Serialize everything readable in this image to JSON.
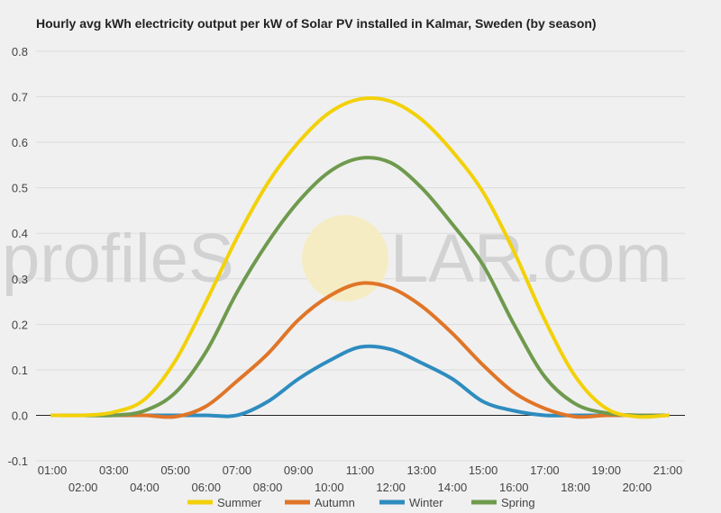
{
  "chart_data": {
    "type": "line",
    "title": "Hourly avg kWh electricity output per kW of Solar PV installed in Kalmar, Sweden (by season)",
    "xlabel": "",
    "ylabel": "",
    "ylim": [
      -0.1,
      0.8
    ],
    "yticks": [
      -0.1,
      0.0,
      0.1,
      0.2,
      0.3,
      0.4,
      0.5,
      0.6,
      0.7,
      0.8
    ],
    "ytick_labels": [
      "-0.1",
      "0.0",
      "0.1",
      "0.2",
      "0.3",
      "0.4",
      "0.5",
      "0.6",
      "0.7",
      "0.8"
    ],
    "x": [
      "01:00",
      "02:00",
      "03:00",
      "04:00",
      "05:00",
      "06:00",
      "07:00",
      "08:00",
      "09:00",
      "10:00",
      "11:00",
      "12:00",
      "13:00",
      "14:00",
      "15:00",
      "16:00",
      "17:00",
      "18:00",
      "19:00",
      "20:00",
      "21:00"
    ],
    "grid": true,
    "legend_position": "bottom",
    "series": [
      {
        "name": "Summer",
        "color": "#f2d10a",
        "values": [
          0.0,
          0.0,
          0.007,
          0.035,
          0.12,
          0.25,
          0.39,
          0.51,
          0.6,
          0.665,
          0.695,
          0.69,
          0.65,
          0.58,
          0.49,
          0.36,
          0.21,
          0.085,
          0.015,
          -0.003,
          0.0
        ]
      },
      {
        "name": "Autumn",
        "color": "#e07528",
        "values": [
          0.0,
          0.0,
          0.0,
          0.0,
          -0.003,
          0.02,
          0.075,
          0.135,
          0.21,
          0.262,
          0.29,
          0.28,
          0.24,
          0.18,
          0.11,
          0.05,
          0.015,
          -0.003,
          0.0,
          0.0,
          0.0
        ]
      },
      {
        "name": "Winter",
        "color": "#2e8cbf",
        "values": [
          0.0,
          0.0,
          0.0,
          0.0,
          0.0,
          0.0,
          0.0,
          0.03,
          0.08,
          0.12,
          0.15,
          0.145,
          0.115,
          0.08,
          0.03,
          0.01,
          0.0,
          0.0,
          0.0,
          0.0,
          0.0
        ]
      },
      {
        "name": "Spring",
        "color": "#6f9a4e",
        "values": [
          0.0,
          0.0,
          0.0,
          0.01,
          0.05,
          0.14,
          0.27,
          0.38,
          0.47,
          0.535,
          0.565,
          0.555,
          0.5,
          0.42,
          0.33,
          0.2,
          0.085,
          0.025,
          0.005,
          0.0,
          0.0
        ]
      }
    ]
  },
  "watermark": {
    "left": "profileS",
    "right": "LAR.com"
  }
}
